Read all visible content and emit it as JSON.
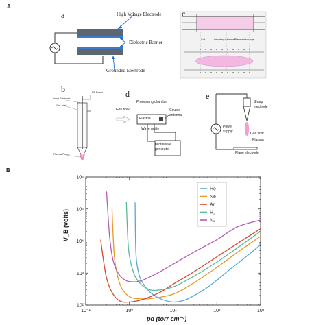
{
  "figure": {
    "section_a": "A",
    "section_b": "B"
  },
  "panel_a": {
    "letter": "a",
    "labels": {
      "hv": "High Voltage Electrode",
      "dielectric": "Dielectric Barrier",
      "ground": "Grounded Electrode"
    }
  },
  "panel_b": {
    "letter": "b",
    "labels": {
      "rf": "RF Power",
      "inner": "Inner Electrode",
      "gas": "Gas Inlet",
      "plume": "Plasma Plume"
    }
  },
  "panel_c": {
    "letter": "c",
    "labels": {
      "coil": "Coil",
      "tube": "Insulating tube wall",
      "discharge": "Plasma discharge"
    }
  },
  "panel_d": {
    "letter": "d",
    "labels": {
      "gas_flow": "Gas flow",
      "chamber": "Processing chamber",
      "plasma": "Plasma",
      "couple": "Couple",
      "antenna": "antenna",
      "waveguide": "Wave guide",
      "microwave1": "Microwave",
      "microwave2": "generator"
    }
  },
  "panel_e": {
    "letter": "e",
    "labels": {
      "sharp1": "Sharp",
      "sharp2": "electrode",
      "power1": "Power",
      "power2": "supply",
      "gas_flow": "Gas flow",
      "plasma": "Plasma",
      "plane": "Plane electrode"
    }
  },
  "chart_data": {
    "type": "line",
    "title": "",
    "xlabel": "pd (torr cm⁻¹)",
    "ylabel": "V_B (volts)",
    "x_scale": "log",
    "y_scale": "log",
    "xlim": [
      0.1,
      1000
    ],
    "ylim": [
      100,
      1000000
    ],
    "x_ticks": [
      "10⁻¹",
      "10⁰",
      "10¹",
      "10²",
      "10³"
    ],
    "y_ticks": [
      "10²",
      "10³",
      "10⁴",
      "10⁵",
      "10⁶"
    ],
    "grid": false,
    "legend_position": "top-right",
    "series": [
      {
        "name": "He",
        "color": "#5aa6d6",
        "x": [
          1.35,
          1.4,
          1.6,
          2,
          3,
          5,
          10,
          20,
          50,
          100,
          200,
          500,
          1000
        ],
        "y": [
          160000,
          5000,
          1100,
          500,
          250,
          160,
          125,
          150,
          300,
          600,
          1300,
          3500,
          7600
        ]
      },
      {
        "name": "Ne",
        "color": "#e49a26",
        "x": [
          0.4,
          0.45,
          0.55,
          0.7,
          1,
          1.5,
          3,
          10,
          30,
          100,
          300,
          1000
        ],
        "y": [
          100000,
          3500,
          700,
          300,
          185,
          160,
          160,
          220,
          500,
          1500,
          4500,
          14000
        ]
      },
      {
        "name": "Ar",
        "color": "#d9452b",
        "x": [
          0.22,
          0.25,
          0.3,
          0.4,
          0.6,
          1,
          2,
          5,
          10,
          30,
          100,
          300,
          1000
        ],
        "y": [
          11000,
          3000,
          700,
          250,
          135,
          125,
          150,
          250,
          450,
          1100,
          3200,
          8500,
          24000
        ]
      },
      {
        "name": "H₂",
        "color": "#58b999",
        "x": [
          0.85,
          0.95,
          1.2,
          1.6,
          2.5,
          4,
          10,
          30,
          100,
          300,
          1000
        ],
        "y": [
          170000,
          6000,
          1200,
          550,
          330,
          290,
          370,
          800,
          2200,
          6200,
          20000
        ]
      },
      {
        "name": "N₂",
        "color": "#b55bb5",
        "x": [
          0.3,
          0.35,
          0.42,
          0.55,
          0.8,
          1.2,
          2,
          5,
          10,
          30,
          100,
          300,
          1000
        ],
        "y": [
          350000,
          15000,
          2600,
          1000,
          600,
          530,
          600,
          1100,
          1900,
          4500,
          11000,
          28000,
          45000
        ]
      }
    ]
  }
}
